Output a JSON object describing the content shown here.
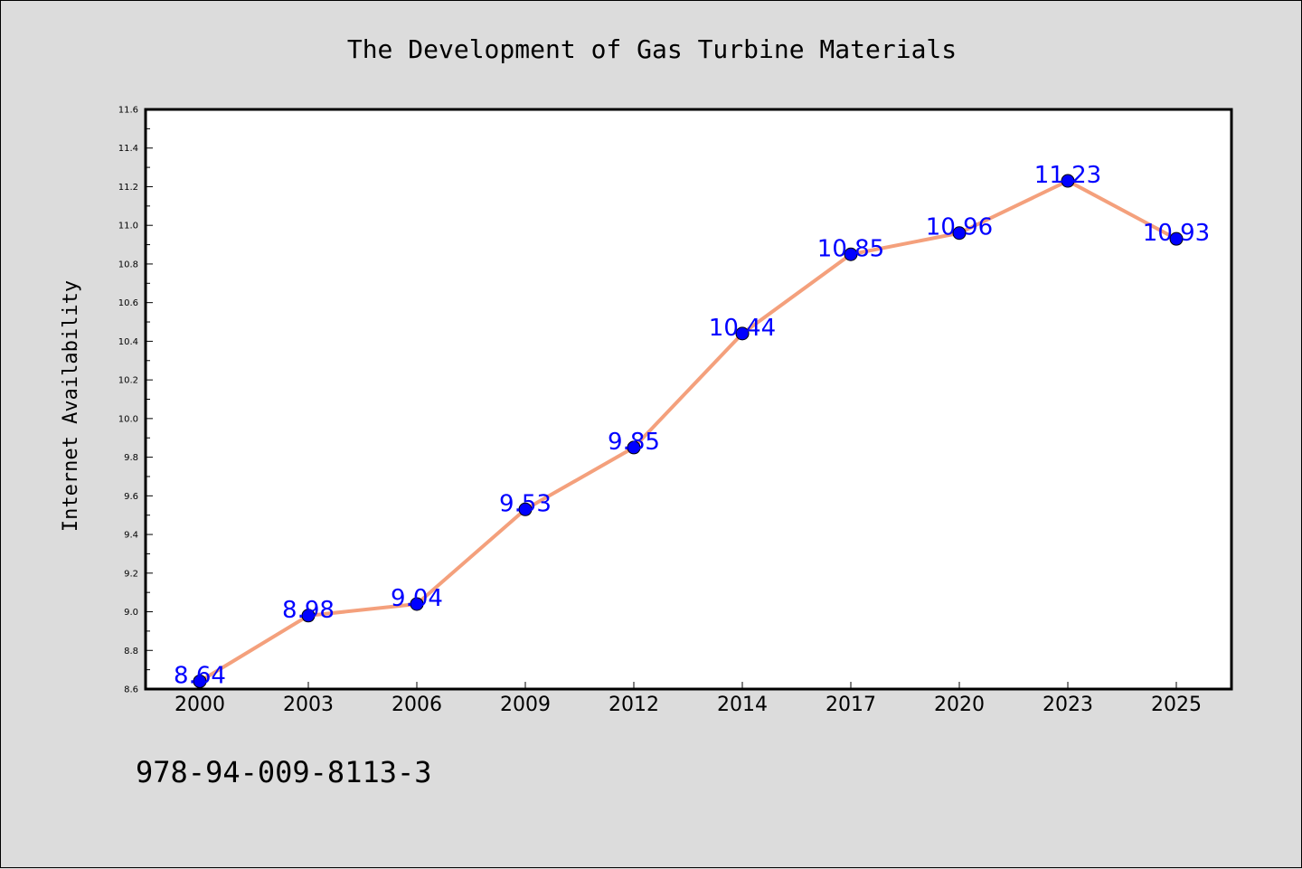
{
  "chart_data": {
    "type": "line",
    "title": "The Development of Gas Turbine Materials",
    "xlabel": "",
    "ylabel": "Internet Availability",
    "categories": [
      "2000",
      "2003",
      "2006",
      "2009",
      "2012",
      "2014",
      "2017",
      "2020",
      "2023",
      "2025"
    ],
    "series": [
      {
        "values": [
          8.64,
          8.98,
          9.04,
          9.53,
          9.85,
          10.44,
          10.85,
          10.96,
          11.23,
          10.93
        ],
        "data_labels": [
          "8.64",
          "8.98",
          "9.04",
          "9.53",
          "9.85",
          "10.44",
          "10.85",
          "10.96",
          "11.23",
          "10.93"
        ],
        "line_color": "#f4a07c",
        "marker_color": "#0000ff",
        "label_color": "#0000ff"
      }
    ],
    "ylim": [
      8.6,
      11.6
    ],
    "yticks": [
      "8.6",
      "8.8",
      "9.0",
      "9.2",
      "9.4",
      "9.6",
      "9.8",
      "10.0",
      "10.2",
      "10.4",
      "10.6",
      "10.8",
      "11.0",
      "11.2",
      "11.4",
      "11.6"
    ],
    "grid": false,
    "legend": "none"
  },
  "footer": {
    "isbn": "978-94-009-8113-3"
  }
}
